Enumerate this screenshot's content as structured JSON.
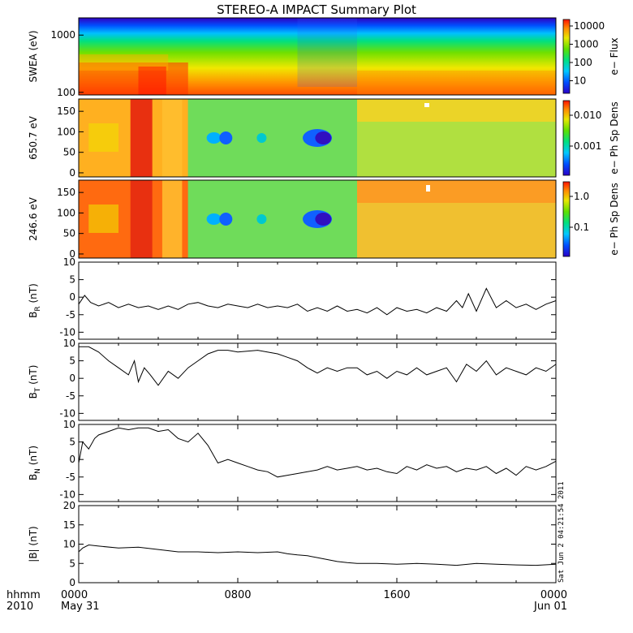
{
  "chart_data": {
    "type": "line",
    "title": "STEREO-A IMPACT Summary Plot",
    "x_axis": {
      "tick_labels": [
        "0000",
        "0800",
        "1600",
        "0000"
      ],
      "tick_sublabels": [
        "May 31",
        "",
        "",
        "Jun 01"
      ],
      "row_label_1": "hhmm",
      "row_label_2": "2010",
      "range_hours": [
        0,
        24
      ]
    },
    "timestamp": "Sat Jun  2 04:21:54 2011",
    "spectrograms": [
      {
        "ylabel": "SWEA (eV)",
        "colorbar_label": "e− Flux",
        "colorbar_ticks": [
          "10000",
          "1000",
          "100",
          "10"
        ],
        "y_ticks": [
          "1000",
          "100"
        ],
        "y_scale": "log",
        "ylim": [
          90,
          2000
        ]
      },
      {
        "ylabel": "650.7 eV",
        "colorbar_label": "e− Ph Sp Dens",
        "colorbar_ticks": [
          "0.010",
          "0.001"
        ],
        "y_ticks": [
          "150",
          "100",
          "50",
          "0"
        ],
        "ylim": [
          -10,
          180
        ]
      },
      {
        "ylabel": "246.6 eV",
        "colorbar_label": "e− Ph Sp Dens",
        "colorbar_ticks": [
          "1.0",
          "0.1"
        ],
        "y_ticks": [
          "150",
          "100",
          "50",
          "0"
        ],
        "ylim": [
          -10,
          180
        ]
      }
    ],
    "series": [
      {
        "name": "B_R",
        "ylabel_main": "B",
        "ylabel_sub": "R",
        "ylabel_unit": " (nT)",
        "ylim": [
          -12,
          10
        ],
        "y_ticks": [
          10,
          5,
          0,
          -5,
          -10
        ],
        "x": [
          0,
          0.3,
          0.6,
          1,
          1.5,
          2,
          2.5,
          3,
          3.5,
          4,
          4.5,
          5,
          5.5,
          6,
          6.5,
          7,
          7.5,
          8,
          8.5,
          9,
          9.5,
          10,
          10.5,
          11,
          11.5,
          12,
          12.5,
          13,
          13.5,
          14,
          14.5,
          15,
          15.5,
          16,
          16.5,
          17,
          17.5,
          18,
          18.5,
          19,
          19.3,
          19.6,
          20,
          20.5,
          21,
          21.5,
          22,
          22.5,
          23,
          23.5,
          24
        ],
        "values": [
          -2,
          0.5,
          -1.5,
          -2.5,
          -1.5,
          -3,
          -2,
          -3,
          -2.5,
          -3.5,
          -2.5,
          -3.5,
          -2,
          -1.5,
          -2.5,
          -3,
          -2,
          -2.5,
          -3,
          -2,
          -3,
          -2.5,
          -3,
          -2,
          -4,
          -3,
          -4,
          -2.5,
          -4,
          -3.5,
          -4.5,
          -3,
          -5,
          -3,
          -4,
          -3.5,
          -4.5,
          -3,
          -4,
          -1,
          -3,
          1,
          -4,
          2.5,
          -3,
          -1,
          -3,
          -2,
          -3.5,
          -2,
          -1
        ]
      },
      {
        "name": "B_T",
        "ylabel_main": "B",
        "ylabel_sub": "T",
        "ylabel_unit": " (nT)",
        "ylim": [
          -12,
          10
        ],
        "y_ticks": [
          10,
          5,
          0,
          -5,
          -10
        ],
        "x": [
          0,
          0.5,
          1,
          1.5,
          2,
          2.5,
          2.8,
          3,
          3.3,
          3.6,
          4,
          4.5,
          5,
          5.5,
          6,
          6.5,
          7,
          7.5,
          8,
          9,
          10,
          10.5,
          11,
          11.5,
          12,
          12.5,
          13,
          13.5,
          14,
          14.5,
          15,
          15.5,
          16,
          16.5,
          17,
          17.5,
          18,
          18.5,
          19,
          19.5,
          20,
          20.5,
          21,
          21.5,
          22,
          22.5,
          23,
          23.5,
          24
        ],
        "values": [
          9,
          9,
          7.5,
          5,
          3,
          1,
          5,
          -1,
          3,
          1,
          -2,
          2,
          0,
          3,
          5,
          7,
          8,
          8,
          7.5,
          8,
          7,
          6,
          5,
          3,
          1.5,
          3,
          2,
          3,
          3,
          1,
          2,
          0,
          2,
          1,
          3,
          1,
          2,
          3,
          -1,
          4,
          2,
          5,
          1,
          3,
          2,
          1,
          3,
          2,
          4
        ]
      },
      {
        "name": "B_N",
        "ylabel_main": "B",
        "ylabel_sub": "N",
        "ylabel_unit": " (nT)",
        "ylim": [
          -12,
          10
        ],
        "y_ticks": [
          10,
          5,
          0,
          -5,
          -10
        ],
        "x": [
          0,
          0.2,
          0.5,
          0.8,
          1,
          1.5,
          2,
          2.5,
          3,
          3.5,
          4,
          4.5,
          5,
          5.5,
          6,
          6.5,
          7,
          7.5,
          8,
          8.5,
          9,
          9.5,
          10,
          10.5,
          11,
          11.5,
          12,
          12.5,
          13,
          13.5,
          14,
          14.5,
          15,
          15.5,
          16,
          16.5,
          17,
          17.5,
          18,
          18.5,
          19,
          19.5,
          20,
          20.5,
          21,
          21.5,
          22,
          22.5,
          23,
          23.5,
          24
        ],
        "values": [
          -1,
          5,
          3,
          6,
          7,
          8,
          9,
          8.5,
          9,
          9,
          8,
          8.5,
          6,
          5,
          7.5,
          4,
          -1,
          0,
          -1,
          -2,
          -3,
          -3.5,
          -5,
          -4.5,
          -4,
          -3.5,
          -3,
          -2,
          -3,
          -2.5,
          -2,
          -3,
          -2.5,
          -3.5,
          -4,
          -2,
          -3,
          -1.5,
          -2.5,
          -2,
          -3.5,
          -2.5,
          -3,
          -2,
          -4,
          -2.5,
          -4.5,
          -2,
          -3,
          -2,
          -0.5
        ]
      },
      {
        "name": "|B|",
        "ylabel_main": "|B|",
        "ylabel_sub": "",
        "ylabel_unit": " (nT)",
        "ylim": [
          0,
          20
        ],
        "y_ticks": [
          20,
          15,
          10,
          5,
          0
        ],
        "x": [
          0,
          0.2,
          0.5,
          1,
          2,
          3,
          4,
          5,
          6,
          7,
          8,
          9,
          10,
          10.5,
          11,
          11.5,
          12,
          12.5,
          13,
          13.5,
          14,
          15,
          16,
          17,
          18,
          19,
          20,
          21,
          22,
          23,
          24
        ],
        "values": [
          8,
          9,
          9.8,
          9.5,
          9,
          9.2,
          8.6,
          8,
          8,
          7.8,
          8,
          7.8,
          8,
          7.5,
          7.2,
          7,
          6.5,
          6,
          5.5,
          5.2,
          5,
          5,
          4.8,
          5,
          4.8,
          4.5,
          5,
          4.8,
          4.6,
          4.5,
          4.8
        ]
      }
    ]
  }
}
